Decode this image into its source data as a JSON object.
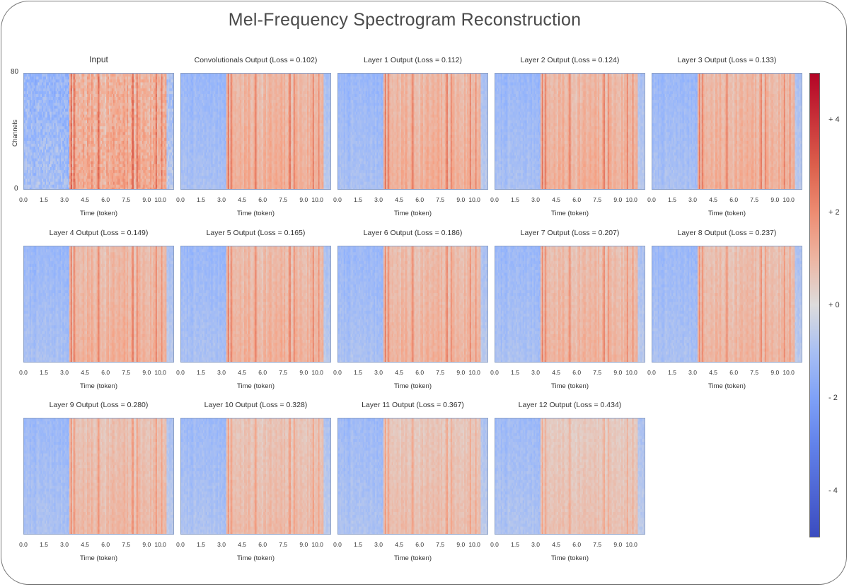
{
  "figure": {
    "title": "Mel-Frequency Spectrogram Reconstruction"
  },
  "chart_data": {
    "type": "heatmap",
    "x_ticks": [
      "0.0",
      "1.5",
      "3.0",
      "4.5",
      "6.0",
      "7.5",
      "9.0",
      "10.0"
    ],
    "xlim": [
      0,
      11
    ],
    "xlabel": "Time (token)",
    "ylabel": "Channels",
    "y_ticks": [
      "80",
      "0"
    ],
    "ylim": [
      0,
      80
    ],
    "colormap": "coolwarm",
    "colorbar": {
      "range": [
        -5,
        5
      ],
      "ticks": [
        "+ 4",
        "+ 2",
        "+ 0",
        "- 2",
        "- 4"
      ],
      "tick_values": [
        4,
        2,
        0,
        -2,
        -4
      ],
      "colors": {
        "low": "#3b4cc0",
        "mid": "#dddcdc",
        "high": "#b40426"
      }
    },
    "panels": [
      {
        "title": "Input",
        "loss": null
      },
      {
        "title": "Convolutionals Output (Loss = 0.102)",
        "loss": 0.102
      },
      {
        "title": "Layer 1 Output (Loss = 0.112)",
        "loss": 0.112
      },
      {
        "title": "Layer 2 Output (Loss = 0.124)",
        "loss": 0.124
      },
      {
        "title": "Layer 3 Output (Loss = 0.133)",
        "loss": 0.133
      },
      {
        "title": "Layer 4 Output (Loss = 0.149)",
        "loss": 0.149
      },
      {
        "title": "Layer 5 Output (Loss = 0.165)",
        "loss": 0.165
      },
      {
        "title": "Layer 6 Output (Loss = 0.186)",
        "loss": 0.186
      },
      {
        "title": "Layer 7 Output (Loss = 0.207)",
        "loss": 0.207
      },
      {
        "title": "Layer 8 Output (Loss = 0.237)",
        "loss": 0.237
      },
      {
        "title": "Layer 9 Output (Loss = 0.280)",
        "loss": 0.28
      },
      {
        "title": "Layer 10 Output (Loss = 0.328)",
        "loss": 0.328
      },
      {
        "title": "Layer 11 Output (Loss = 0.367)",
        "loss": 0.367
      },
      {
        "title": "Layer 12 Output (Loss = 0.434)",
        "loss": 0.434
      }
    ]
  }
}
